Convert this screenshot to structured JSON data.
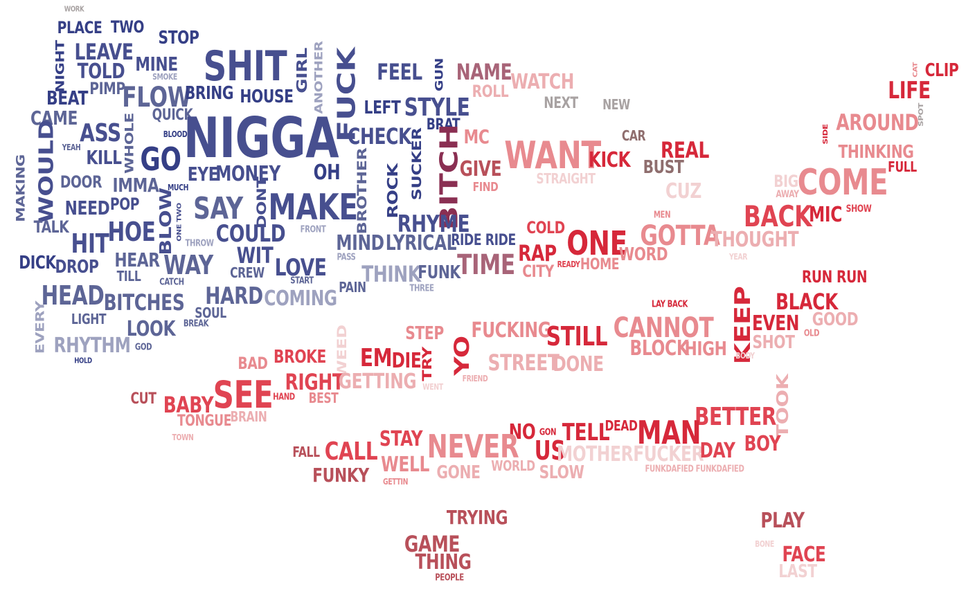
{
  "colors": {
    "navy": "#353f86",
    "indigo": "#474f8f",
    "slate": "#5d6596",
    "lavender": "#9ea2bf",
    "mauve": "#a86478",
    "plum": "#8a2f52",
    "crimson": "#d6283a",
    "red": "#e04452",
    "salmon": "#e88a8f",
    "rose": "#ecaeb1",
    "blush": "#f2d1d2",
    "brick": "#b8505a",
    "grey": "#a8a2a2",
    "taupe": "#8f6e6e"
  },
  "words": [
    {
      "text": "WORK",
      "color": "grey"
    },
    {
      "text": "PLACE",
      "color": "navy"
    },
    {
      "text": "TWO",
      "color": "navy"
    },
    {
      "text": "STOP",
      "color": "navy"
    },
    {
      "text": "NIGHT",
      "color": "navy"
    },
    {
      "text": "LEAVE",
      "color": "indigo"
    },
    {
      "text": "MINE",
      "color": "indigo"
    },
    {
      "text": "SMOKE",
      "color": "lavender"
    },
    {
      "text": "SHIT",
      "color": "indigo"
    },
    {
      "text": "GIRL",
      "color": "indigo"
    },
    {
      "text": "ANOTHER",
      "color": "lavender"
    },
    {
      "text": "FUCK",
      "color": "indigo"
    },
    {
      "text": "FEEL",
      "color": "indigo"
    },
    {
      "text": "GUN",
      "color": "navy"
    },
    {
      "text": "NAME",
      "color": "mauve"
    },
    {
      "text": "ROLL",
      "color": "rose"
    },
    {
      "text": "WATCH",
      "color": "rose"
    },
    {
      "text": "NEXT",
      "color": "grey"
    },
    {
      "text": "NEW",
      "color": "grey"
    },
    {
      "text": "CAT",
      "color": "salmon"
    },
    {
      "text": "CLIP",
      "color": "crimson"
    },
    {
      "text": "TOLD",
      "color": "indigo"
    },
    {
      "text": "PIMP",
      "color": "slate"
    },
    {
      "text": "FLOW",
      "color": "slate"
    },
    {
      "text": "BRING",
      "color": "navy"
    },
    {
      "text": "HOUSE",
      "color": "navy"
    },
    {
      "text": "LEFT",
      "color": "navy"
    },
    {
      "text": "STYLE",
      "color": "indigo"
    },
    {
      "text": "LIFE",
      "color": "crimson"
    },
    {
      "text": "BEAT",
      "color": "navy"
    },
    {
      "text": "QUICK",
      "color": "slate"
    },
    {
      "text": "CAME",
      "color": "slate"
    },
    {
      "text": "ASS",
      "color": "indigo"
    },
    {
      "text": "BLOOD",
      "color": "navy"
    },
    {
      "text": "NIGGA",
      "color": "indigo"
    },
    {
      "text": "BRAT",
      "color": "navy"
    },
    {
      "text": "CHECK",
      "color": "indigo"
    },
    {
      "text": "MC",
      "color": "salmon"
    },
    {
      "text": "AROUND",
      "color": "salmon"
    },
    {
      "text": "SPOT",
      "color": "grey"
    },
    {
      "text": "CAR",
      "color": "taupe"
    },
    {
      "text": "SIDE",
      "color": "crimson"
    },
    {
      "text": "THINKING",
      "color": "salmon"
    },
    {
      "text": "YEAH",
      "color": "slate"
    },
    {
      "text": "WHOLE",
      "color": "slate"
    },
    {
      "text": "WOULD",
      "color": "indigo"
    },
    {
      "text": "KILL",
      "color": "indigo"
    },
    {
      "text": "GO",
      "color": "navy"
    },
    {
      "text": "EYE",
      "color": "indigo"
    },
    {
      "text": "MONEY",
      "color": "indigo"
    },
    {
      "text": "OH",
      "color": "navy"
    },
    {
      "text": "BITCH",
      "color": "plum"
    },
    {
      "text": "GIVE",
      "color": "brick"
    },
    {
      "text": "WANT",
      "color": "salmon"
    },
    {
      "text": "KICK",
      "color": "crimson"
    },
    {
      "text": "REAL",
      "color": "crimson"
    },
    {
      "text": "BUST",
      "color": "taupe"
    },
    {
      "text": "FULL",
      "color": "crimson"
    },
    {
      "text": "MAKING",
      "color": "slate"
    },
    {
      "text": "DOOR",
      "color": "slate"
    },
    {
      "text": "IMMA",
      "color": "slate"
    },
    {
      "text": "MUCH",
      "color": "navy"
    },
    {
      "text": "SUCKER",
      "color": "navy"
    },
    {
      "text": "BROTHER",
      "color": "slate"
    },
    {
      "text": "ROCK",
      "color": "navy"
    },
    {
      "text": "FIND",
      "color": "salmon"
    },
    {
      "text": "STRAIGHT",
      "color": "blush"
    },
    {
      "text": "CUZ",
      "color": "blush"
    },
    {
      "text": "BIG",
      "color": "blush"
    },
    {
      "text": "AWAY",
      "color": "rose"
    },
    {
      "text": "COME",
      "color": "salmon"
    },
    {
      "text": "NEED",
      "color": "indigo"
    },
    {
      "text": "POP",
      "color": "indigo"
    },
    {
      "text": "BLOW",
      "color": "indigo"
    },
    {
      "text": "ONE TWO",
      "color": "indigo"
    },
    {
      "text": "SAY",
      "color": "slate"
    },
    {
      "text": "DONT",
      "color": "indigo"
    },
    {
      "text": "MAKE",
      "color": "indigo"
    },
    {
      "text": "BACK",
      "color": "red"
    },
    {
      "text": "MIC",
      "color": "crimson"
    },
    {
      "text": "SHOW",
      "color": "red"
    },
    {
      "text": "TALK",
      "color": "slate"
    },
    {
      "text": "HOE",
      "color": "indigo"
    },
    {
      "text": "COULD",
      "color": "indigo"
    },
    {
      "text": "FRONT",
      "color": "lavender"
    },
    {
      "text": "RHYME",
      "color": "indigo"
    },
    {
      "text": "MEN",
      "color": "salmon"
    },
    {
      "text": "COLD",
      "color": "red"
    },
    {
      "text": "GOTTA",
      "color": "salmon"
    },
    {
      "text": "THOUGHT",
      "color": "rose"
    },
    {
      "text": "HIT",
      "color": "indigo"
    },
    {
      "text": "THROW",
      "color": "lavender"
    },
    {
      "text": "WIT",
      "color": "indigo"
    },
    {
      "text": "MIND",
      "color": "slate"
    },
    {
      "text": "LYRICAL",
      "color": "slate"
    },
    {
      "text": "RIDE RIDE",
      "color": "indigo"
    },
    {
      "text": "ONE",
      "color": "crimson"
    },
    {
      "text": "RAP",
      "color": "crimson"
    },
    {
      "text": "DICK",
      "color": "navy"
    },
    {
      "text": "DROP",
      "color": "indigo"
    },
    {
      "text": "HEAR",
      "color": "slate"
    },
    {
      "text": "WAY",
      "color": "slate"
    },
    {
      "text": "CREW",
      "color": "slate"
    },
    {
      "text": "LOVE",
      "color": "indigo"
    },
    {
      "text": "PASS",
      "color": "lavender"
    },
    {
      "text": "TIME",
      "color": "mauve"
    },
    {
      "text": "CITY",
      "color": "salmon"
    },
    {
      "text": "READY",
      "color": "red"
    },
    {
      "text": "HOME",
      "color": "salmon"
    },
    {
      "text": "WORD",
      "color": "salmon"
    },
    {
      "text": "YEAR",
      "color": "blush"
    },
    {
      "text": "TILL",
      "color": "slate"
    },
    {
      "text": "CATCH",
      "color": "slate"
    },
    {
      "text": "START",
      "color": "slate"
    },
    {
      "text": "THINK",
      "color": "lavender"
    },
    {
      "text": "FUNK",
      "color": "slate"
    },
    {
      "text": "RUN RUN",
      "color": "crimson"
    },
    {
      "text": "HEAD",
      "color": "slate"
    },
    {
      "text": "BITCHES",
      "color": "slate"
    },
    {
      "text": "HARD",
      "color": "slate"
    },
    {
      "text": "COMING",
      "color": "lavender"
    },
    {
      "text": "PAIN",
      "color": "slate"
    },
    {
      "text": "THREE",
      "color": "lavender"
    },
    {
      "text": "LAY BACK",
      "color": "crimson"
    },
    {
      "text": "BLACK",
      "color": "crimson"
    },
    {
      "text": "EVERY",
      "color": "lavender"
    },
    {
      "text": "LIGHT",
      "color": "slate"
    },
    {
      "text": "SOUL",
      "color": "slate"
    },
    {
      "text": "BREAK",
      "color": "slate"
    },
    {
      "text": "LOOK",
      "color": "slate"
    },
    {
      "text": "STEP",
      "color": "salmon"
    },
    {
      "text": "FUCKING",
      "color": "salmon"
    },
    {
      "text": "STILL",
      "color": "crimson"
    },
    {
      "text": "CANNOT",
      "color": "salmon"
    },
    {
      "text": "KEEP",
      "color": "crimson"
    },
    {
      "text": "EVEN",
      "color": "crimson"
    },
    {
      "text": "GOOD",
      "color": "rose"
    },
    {
      "text": "RHYTHM",
      "color": "lavender"
    },
    {
      "text": "GOD",
      "color": "slate"
    },
    {
      "text": "WEED",
      "color": "blush"
    },
    {
      "text": "BLOCK",
      "color": "salmon"
    },
    {
      "text": "HIGH",
      "color": "salmon"
    },
    {
      "text": "SHOT",
      "color": "rose"
    },
    {
      "text": "OLD",
      "color": "salmon"
    },
    {
      "text": "HOLD",
      "color": "navy"
    },
    {
      "text": "BAD",
      "color": "salmon"
    },
    {
      "text": "BROKE",
      "color": "red"
    },
    {
      "text": "EM",
      "color": "crimson"
    },
    {
      "text": "DIE",
      "color": "crimson"
    },
    {
      "text": "TRY",
      "color": "crimson"
    },
    {
      "text": "YO",
      "color": "crimson"
    },
    {
      "text": "STREET",
      "color": "rose"
    },
    {
      "text": "DONE",
      "color": "rose"
    },
    {
      "text": "BODY",
      "color": "blush"
    },
    {
      "text": "SEE",
      "color": "red"
    },
    {
      "text": "RIGHT",
      "color": "red"
    },
    {
      "text": "GETTING",
      "color": "rose"
    },
    {
      "text": "FRIEND",
      "color": "rose"
    },
    {
      "text": "WENT",
      "color": "blush"
    },
    {
      "text": "CUT",
      "color": "brick"
    },
    {
      "text": "BABY",
      "color": "red"
    },
    {
      "text": "HAND",
      "color": "red"
    },
    {
      "text": "BEST",
      "color": "salmon"
    },
    {
      "text": "TONGUE",
      "color": "salmon"
    },
    {
      "text": "BRAIN",
      "color": "rose"
    },
    {
      "text": "TOWN",
      "color": "rose"
    },
    {
      "text": "TOOK",
      "color": "rose"
    },
    {
      "text": "BETTER",
      "color": "red"
    },
    {
      "text": "NO",
      "color": "crimson"
    },
    {
      "text": "GON",
      "color": "crimson"
    },
    {
      "text": "TELL",
      "color": "crimson"
    },
    {
      "text": "DEAD",
      "color": "crimson"
    },
    {
      "text": "MAN",
      "color": "crimson"
    },
    {
      "text": "BOY",
      "color": "red"
    },
    {
      "text": "STAY",
      "color": "red"
    },
    {
      "text": "FALL",
      "color": "brick"
    },
    {
      "text": "CALL",
      "color": "red"
    },
    {
      "text": "NEVER",
      "color": "salmon"
    },
    {
      "text": "US",
      "color": "crimson"
    },
    {
      "text": "MOTHERFUCKER",
      "color": "blush"
    },
    {
      "text": "DAY",
      "color": "red"
    },
    {
      "text": "WELL",
      "color": "salmon"
    },
    {
      "text": "WORLD",
      "color": "rose"
    },
    {
      "text": "FUNKY",
      "color": "brick"
    },
    {
      "text": "GETTIN",
      "color": "salmon"
    },
    {
      "text": "GONE",
      "color": "rose"
    },
    {
      "text": "SLOW",
      "color": "rose"
    },
    {
      "text": "FUNKDAFIED FUNKDAFIED",
      "color": "rose"
    },
    {
      "text": "TRYING",
      "color": "brick"
    },
    {
      "text": "PLAY",
      "color": "brick"
    },
    {
      "text": "BONE",
      "color": "blush"
    },
    {
      "text": "GAME",
      "color": "brick"
    },
    {
      "text": "FACE",
      "color": "red"
    },
    {
      "text": "THING",
      "color": "brick"
    },
    {
      "text": "LAST",
      "color": "blush"
    },
    {
      "text": "PEOPLE",
      "color": "brick"
    }
  ]
}
